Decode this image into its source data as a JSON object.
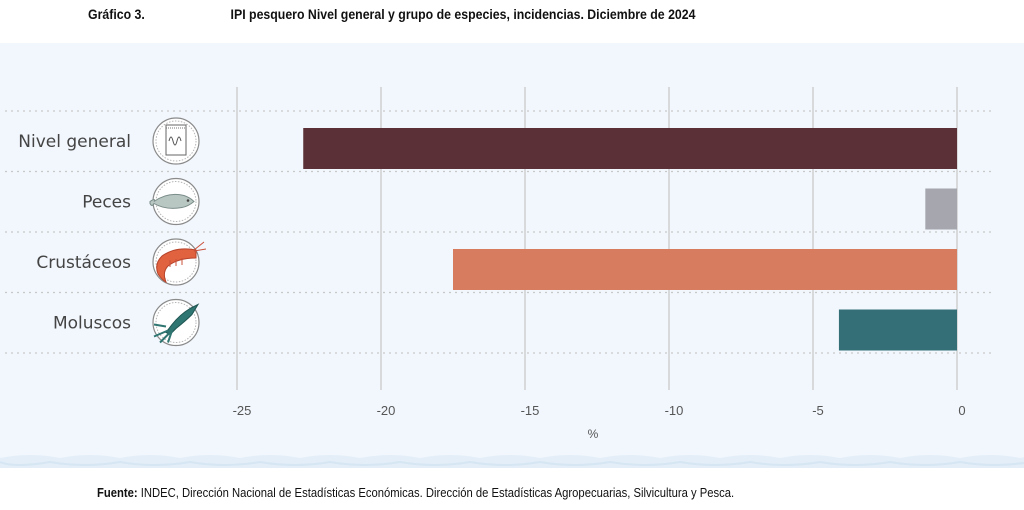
{
  "header": {
    "figure_label": "Gráfico 3.",
    "title": "IPI pesquero Nivel general y grupo de especies, incidencias. Diciembre de 2024"
  },
  "chart_data": {
    "type": "bar",
    "orientation": "horizontal",
    "title": "IPI pesquero Nivel general y grupo de especies, incidencias. Diciembre de 2024",
    "categories": [
      "Nivel general",
      "Peces",
      "Crustáceos",
      "Moluscos"
    ],
    "category_icons": [
      "chart-notebook-icon",
      "fish-icon",
      "shrimp-icon",
      "squid-icon"
    ],
    "values": [
      -22.7,
      -1.1,
      -17.5,
      -4.1
    ],
    "colors": [
      "#5b3037",
      "#a6a6ae",
      "#d77c5e",
      "#346f78"
    ],
    "xlabel": "%",
    "ylabel": "",
    "xlim": [
      -25,
      0
    ],
    "xticks": [
      -25,
      -20,
      -15,
      -10,
      -5,
      0
    ],
    "xtick_labels": [
      "-25",
      "-20",
      "-15",
      "-10",
      "-5",
      "0"
    ],
    "grid": "vertical solid at ticks, horizontal dotted between categories",
    "legend": "none"
  },
  "footer": {
    "source_label": "Fuente:",
    "source_text": " INDEC, Dirección Nacional de Estadísticas Económicas. Dirección de Estadísticas Agropecuarias, Silvicultura y Pesca."
  }
}
